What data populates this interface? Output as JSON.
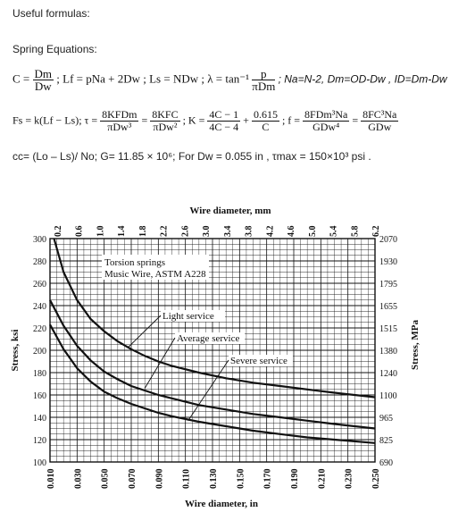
{
  "heading": "Useful formulas:",
  "subheading": "Spring Equations:",
  "eq1": {
    "c_lhs": "C =",
    "c_num": "Dm",
    "c_den": "Dw",
    "rest": "; Lf = pNa + 2Dw ;  Ls = NDw ;  λ = tan⁻¹",
    "lam_num": "p",
    "lam_den": "πDm",
    "tail": "; Na=N-2, Dm=OD-Dw , ID=Dm-Dw"
  },
  "eq2": {
    "f_lhs": "Fs = k(Lf − Ls);  τ =",
    "t1_num": "8KFDm",
    "t1_den": "πDw³",
    "eq": "=",
    "t2_num": "8KFC",
    "t2_den": "πDw²",
    "k_lhs": "; K =",
    "k1_num": "4C − 1",
    "k1_den": "4C − 4",
    "plus": "+",
    "k2_num": "0.615",
    "k2_den": "C",
    "f2_lhs": ";  f =",
    "f1_num": "8FDm³Na",
    "f1_den": "GDw⁴",
    "f3_num": "8FC³Na",
    "f3_den": "GDw"
  },
  "eq3": "cc= (Lo – Ls)/ No; G= 11.85 × 10⁶; For Dw = 0.055 in , τmax = 150×10³ psi .",
  "chart_data": {
    "type": "line",
    "title": "Wire diameter, mm",
    "xlabel": "Wire diameter, in",
    "ylabel": "Stress, ksi",
    "y2label": "Stress, MPa",
    "xlim": [
      0.01,
      0.25
    ],
    "ylim": [
      100,
      300
    ],
    "grid": true,
    "x_ticks": [
      "0.010",
      "0.030",
      "0.050",
      "0.070",
      "0.090",
      "0.110",
      "0.130",
      "0.150",
      "0.170",
      "0.190",
      "0.210",
      "0.230",
      "0.250"
    ],
    "y_ticks": [
      "100",
      "120",
      "140",
      "160",
      "180",
      "200",
      "220",
      "240",
      "260",
      "280",
      "300"
    ],
    "top_ticks": [
      "0.2",
      "0.6",
      "1.0",
      "1.4",
      "1.8",
      "2.2",
      "2.6",
      "3.0",
      "3.4",
      "3.8",
      "4.2",
      "4.6",
      "5.0",
      "5.4",
      "5.8",
      "6.2"
    ],
    "right_ticks": [
      "690",
      "825",
      "965",
      "1100",
      "1240",
      "1380",
      "1515",
      "1655",
      "1795",
      "1930",
      "2070"
    ],
    "annotations": [
      "Torsion springs",
      "Music Wire, ASTM A228",
      "Light service",
      "Average service",
      "Severe service"
    ],
    "series": [
      {
        "name": "Light service",
        "x": [
          0.013,
          0.02,
          0.03,
          0.04,
          0.05,
          0.06,
          0.07,
          0.08,
          0.09,
          0.1,
          0.12,
          0.14,
          0.16,
          0.18,
          0.2,
          0.22,
          0.25
        ],
        "values": [
          300,
          270,
          245,
          228,
          217,
          208,
          201,
          195,
          190,
          186,
          180,
          175,
          171,
          168,
          165,
          162,
          158
        ]
      },
      {
        "name": "Average service",
        "x": [
          0.01,
          0.02,
          0.03,
          0.04,
          0.05,
          0.06,
          0.07,
          0.08,
          0.09,
          0.1,
          0.12,
          0.14,
          0.16,
          0.18,
          0.2,
          0.22,
          0.25
        ],
        "values": [
          245,
          222,
          204,
          191,
          181,
          174,
          168,
          164,
          160,
          157,
          151,
          147,
          143,
          140,
          137,
          134,
          130
        ]
      },
      {
        "name": "Severe service",
        "x": [
          0.01,
          0.02,
          0.03,
          0.04,
          0.05,
          0.06,
          0.07,
          0.08,
          0.09,
          0.1,
          0.12,
          0.14,
          0.16,
          0.18,
          0.2,
          0.22,
          0.25
        ],
        "values": [
          223,
          201,
          184,
          172,
          163,
          157,
          152,
          148,
          144,
          141,
          136,
          132,
          128,
          125,
          122,
          120,
          117
        ]
      }
    ]
  }
}
